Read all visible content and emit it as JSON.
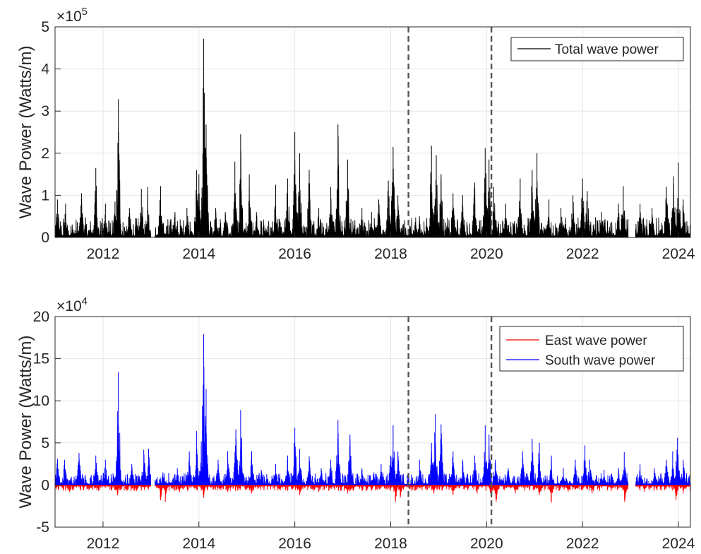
{
  "chart_data": [
    {
      "type": "line",
      "title": "",
      "xlabel": "",
      "ylabel": "Wave Power (Watts/m)",
      "y_multiplier": "×10^5",
      "y_multiplier_base": "×10",
      "y_multiplier_exp": "5",
      "xlim": [
        2011.0,
        2024.25
      ],
      "ylim": [
        0,
        5
      ],
      "x_ticks": [
        2012,
        2014,
        2016,
        2018,
        2020,
        2022,
        2024
      ],
      "x_tick_labels": [
        "2012",
        "2014",
        "2016",
        "2018",
        "2020",
        "2022",
        "2024"
      ],
      "y_ticks": [
        0,
        1,
        2,
        3,
        4,
        5
      ],
      "y_tick_labels": [
        "0",
        "1",
        "2",
        "3",
        "4",
        "5"
      ],
      "grid": true,
      "legend": {
        "position": "top-right",
        "entries": [
          {
            "label": "Total wave power",
            "color": "#000000"
          }
        ]
      },
      "vlines": [
        2018.37,
        2020.1
      ],
      "gaps": [
        [
          2013.0,
          2013.08
        ],
        [
          2022.95,
          2023.1
        ]
      ],
      "series": [
        {
          "name": "Total wave power",
          "color": "#000000",
          "baseline": 0.2,
          "peaks": [
            [
              2011.05,
              0.9
            ],
            [
              2011.22,
              0.8
            ],
            [
              2011.55,
              1.05
            ],
            [
              2011.85,
              1.65
            ],
            [
              2012.05,
              0.8
            ],
            [
              2012.25,
              0.85
            ],
            [
              2012.32,
              3.28
            ],
            [
              2012.55,
              0.7
            ],
            [
              2012.8,
              1.15
            ],
            [
              2012.93,
              1.2
            ],
            [
              2013.2,
              1.22
            ],
            [
              2013.5,
              0.6
            ],
            [
              2013.75,
              0.7
            ],
            [
              2013.95,
              1.6
            ],
            [
              2014.0,
              1.5
            ],
            [
              2014.1,
              4.72
            ],
            [
              2014.15,
              2.68
            ],
            [
              2014.35,
              0.7
            ],
            [
              2014.55,
              0.6
            ],
            [
              2014.75,
              1.8
            ],
            [
              2014.87,
              2.45
            ],
            [
              2015.05,
              1.5
            ],
            [
              2015.2,
              0.6
            ],
            [
              2015.6,
              1.25
            ],
            [
              2015.85,
              1.4
            ],
            [
              2016.0,
              2.5
            ],
            [
              2016.1,
              2.0
            ],
            [
              2016.3,
              1.6
            ],
            [
              2016.5,
              0.7
            ],
            [
              2016.75,
              1.2
            ],
            [
              2016.9,
              2.68
            ],
            [
              2017.1,
              1.85
            ],
            [
              2017.4,
              0.7
            ],
            [
              2017.6,
              0.6
            ],
            [
              2017.75,
              0.9
            ],
            [
              2017.95,
              1.35
            ],
            [
              2018.05,
              2.15
            ],
            [
              2018.15,
              1.0
            ],
            [
              2018.6,
              0.5
            ],
            [
              2018.85,
              2.18
            ],
            [
              2018.95,
              1.95
            ],
            [
              2019.05,
              1.5
            ],
            [
              2019.3,
              1.05
            ],
            [
              2019.5,
              1.0
            ],
            [
              2019.75,
              1.3
            ],
            [
              2019.97,
              2.12
            ],
            [
              2020.05,
              1.85
            ],
            [
              2020.15,
              1.2
            ],
            [
              2020.4,
              0.8
            ],
            [
              2020.7,
              1.4
            ],
            [
              2020.95,
              1.6
            ],
            [
              2021.05,
              2.0
            ],
            [
              2021.3,
              0.9
            ],
            [
              2021.55,
              0.7
            ],
            [
              2021.8,
              1.0
            ],
            [
              2022.0,
              1.4
            ],
            [
              2022.1,
              1.1
            ],
            [
              2022.4,
              0.6
            ],
            [
              2022.75,
              0.8
            ],
            [
              2022.85,
              1.22
            ],
            [
              2023.2,
              0.8
            ],
            [
              2023.45,
              0.7
            ],
            [
              2023.75,
              1.2
            ],
            [
              2023.9,
              1.45
            ],
            [
              2024.0,
              1.78
            ],
            [
              2024.1,
              0.9
            ]
          ]
        }
      ]
    },
    {
      "type": "line",
      "title": "",
      "xlabel": "",
      "ylabel": "Wave Power (Watts/m)",
      "y_multiplier": "×10^4",
      "y_multiplier_base": "×10",
      "y_multiplier_exp": "4",
      "xlim": [
        2011.0,
        2024.25
      ],
      "ylim": [
        -5,
        20
      ],
      "x_ticks": [
        2012,
        2014,
        2016,
        2018,
        2020,
        2022,
        2024
      ],
      "x_tick_labels": [
        "2012",
        "2014",
        "2016",
        "2018",
        "2020",
        "2022",
        "2024"
      ],
      "y_ticks": [
        -5,
        0,
        5,
        10,
        15,
        20
      ],
      "y_tick_labels": [
        "-5",
        "0",
        "5",
        "10",
        "15",
        "20"
      ],
      "grid": true,
      "legend": {
        "position": "top-right",
        "entries": [
          {
            "label": "East wave power",
            "color": "#ff0000"
          },
          {
            "label": "South wave power",
            "color": "#0000ff"
          }
        ]
      },
      "vlines": [
        2018.37,
        2020.1
      ],
      "gaps": [
        [
          2013.0,
          2013.08
        ],
        [
          2022.95,
          2023.1
        ]
      ],
      "series": [
        {
          "name": "East wave power",
          "color": "#ff0000",
          "baseline": -0.3,
          "peaks": [
            [
              2011.3,
              -0.8
            ],
            [
              2012.3,
              -1.2
            ],
            [
              2012.7,
              -0.7
            ],
            [
              2013.2,
              -1.8
            ],
            [
              2013.3,
              -2.0
            ],
            [
              2013.6,
              -0.8
            ],
            [
              2014.1,
              -1.5
            ],
            [
              2014.6,
              -0.8
            ],
            [
              2015.1,
              -1.0
            ],
            [
              2015.7,
              -0.6
            ],
            [
              2016.1,
              -1.2
            ],
            [
              2016.5,
              -0.8
            ],
            [
              2017.1,
              -1.0
            ],
            [
              2017.6,
              -0.6
            ],
            [
              2018.1,
              -2.0
            ],
            [
              2018.2,
              -1.5
            ],
            [
              2018.9,
              -1.0
            ],
            [
              2019.3,
              -1.2
            ],
            [
              2019.8,
              -1.0
            ],
            [
              2020.1,
              -1.5
            ],
            [
              2020.2,
              -2.0
            ],
            [
              2020.6,
              -1.0
            ],
            [
              2021.1,
              -1.2
            ],
            [
              2021.35,
              -2.1
            ],
            [
              2021.7,
              -0.8
            ],
            [
              2022.2,
              -1.0
            ],
            [
              2022.6,
              -0.7
            ],
            [
              2022.88,
              -2.0
            ],
            [
              2023.3,
              -0.8
            ],
            [
              2023.95,
              -1.8
            ],
            [
              2024.1,
              -1.0
            ]
          ]
        },
        {
          "name": "South wave power",
          "color": "#0000ff",
          "baseline": 0.6,
          "peaks": [
            [
              2011.05,
              3.1
            ],
            [
              2011.2,
              3.0
            ],
            [
              2011.5,
              3.8
            ],
            [
              2011.85,
              3.5
            ],
            [
              2012.05,
              3.0
            ],
            [
              2012.3,
              4.7
            ],
            [
              2012.32,
              13.4
            ],
            [
              2012.6,
              2.5
            ],
            [
              2012.85,
              4.2
            ],
            [
              2012.95,
              4.3
            ],
            [
              2013.25,
              1.5
            ],
            [
              2013.55,
              2.0
            ],
            [
              2013.8,
              4.0
            ],
            [
              2013.95,
              6.4
            ],
            [
              2014.05,
              5.2
            ],
            [
              2014.1,
              17.9
            ],
            [
              2014.15,
              11.4
            ],
            [
              2014.4,
              3.0
            ],
            [
              2014.6,
              4.0
            ],
            [
              2014.77,
              6.6
            ],
            [
              2014.87,
              8.9
            ],
            [
              2015.1,
              4.0
            ],
            [
              2015.3,
              1.8
            ],
            [
              2015.6,
              2.5
            ],
            [
              2015.85,
              3.5
            ],
            [
              2016.0,
              6.8
            ],
            [
              2016.1,
              4.3
            ],
            [
              2016.3,
              3.4
            ],
            [
              2016.55,
              2.0
            ],
            [
              2016.75,
              3.0
            ],
            [
              2016.9,
              7.7
            ],
            [
              2017.15,
              6.0
            ],
            [
              2017.4,
              2.0
            ],
            [
              2017.65,
              1.5
            ],
            [
              2017.8,
              2.5
            ],
            [
              2018.0,
              3.5
            ],
            [
              2018.05,
              7.1
            ],
            [
              2018.15,
              4.0
            ],
            [
              2018.6,
              3.0
            ],
            [
              2018.85,
              5.0
            ],
            [
              2018.93,
              8.4
            ],
            [
              2019.05,
              7.2
            ],
            [
              2019.3,
              4.0
            ],
            [
              2019.5,
              3.0
            ],
            [
              2019.75,
              3.5
            ],
            [
              2019.97,
              7.1
            ],
            [
              2020.05,
              6.0
            ],
            [
              2020.18,
              3.0
            ],
            [
              2020.45,
              2.0
            ],
            [
              2020.75,
              4.0
            ],
            [
              2020.95,
              5.5
            ],
            [
              2021.1,
              5.0
            ],
            [
              2021.35,
              3.5
            ],
            [
              2021.6,
              2.0
            ],
            [
              2021.85,
              3.0
            ],
            [
              2022.05,
              4.7
            ],
            [
              2022.15,
              3.0
            ],
            [
              2022.45,
              1.8
            ],
            [
              2022.75,
              2.0
            ],
            [
              2022.87,
              3.9
            ],
            [
              2023.2,
              2.5
            ],
            [
              2023.5,
              2.0
            ],
            [
              2023.75,
              3.0
            ],
            [
              2023.88,
              4.0
            ],
            [
              2023.98,
              5.6
            ],
            [
              2024.1,
              3.0
            ]
          ]
        }
      ]
    }
  ]
}
